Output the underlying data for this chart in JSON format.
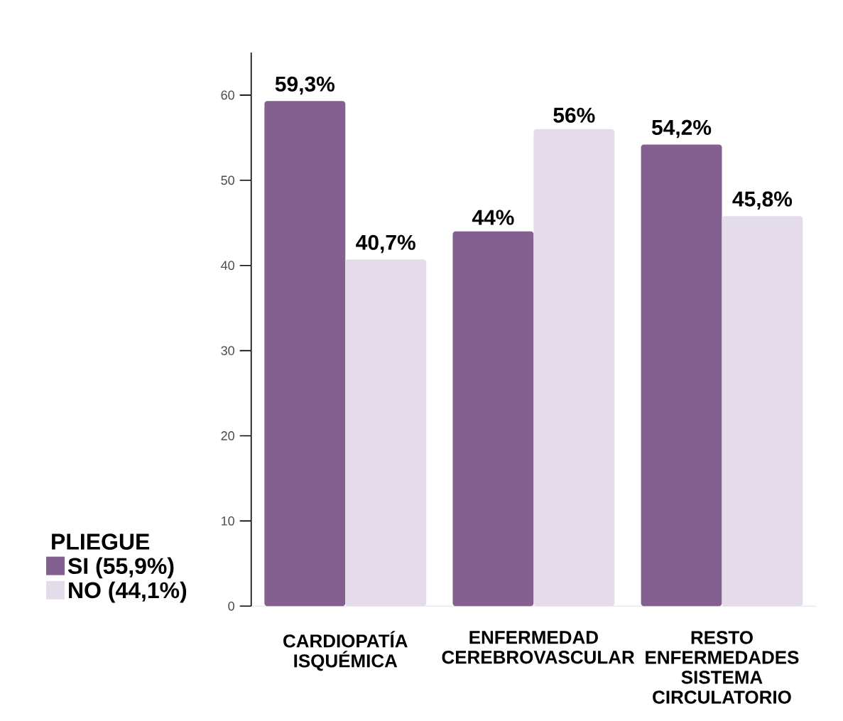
{
  "chart_data": {
    "type": "bar",
    "categories": [
      "CARDIOPATÍA ISQUÉMICA",
      "ENFERMEDAD CEREBROVASCULAR",
      "RESTO ENFERMEDADES SISTEMA CIRCULATORIO"
    ],
    "series": [
      {
        "name": "SI   (55,9%)",
        "color": "#83608f",
        "values": [
          59.3,
          44,
          54.2
        ],
        "value_labels": [
          "59,3%",
          "44%",
          "54,2%"
        ]
      },
      {
        "name": "NO (44,1%)",
        "color": "#e4dcea",
        "values": [
          40.7,
          56,
          45.8
        ],
        "value_labels": [
          "40,7%",
          "56%",
          "45,8%"
        ]
      }
    ],
    "legend_title": "PLIEGUE",
    "legend": "left",
    "ylim": [
      0,
      65
    ],
    "yticks": [
      0,
      10,
      20,
      30,
      40,
      50,
      60
    ]
  }
}
